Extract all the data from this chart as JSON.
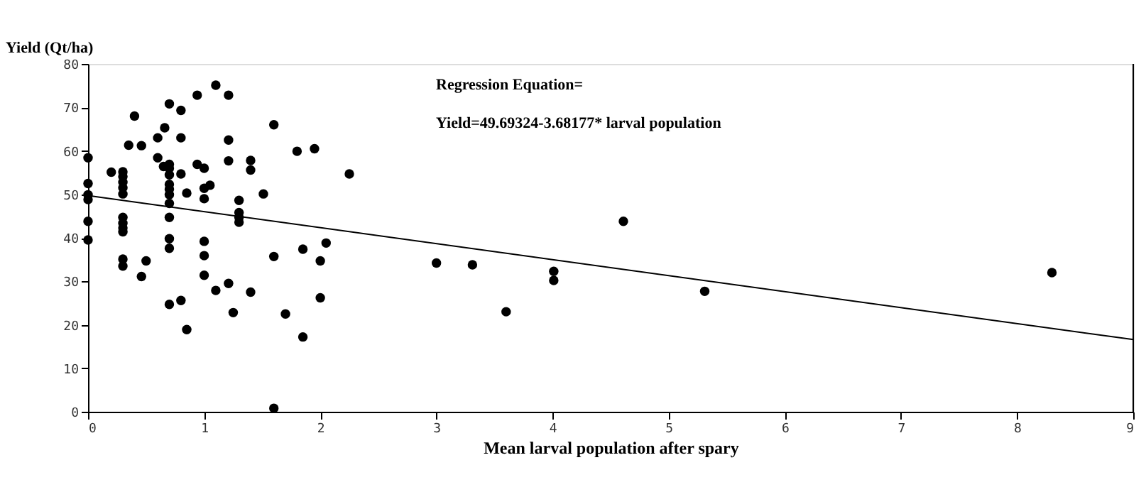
{
  "chart_data": {
    "type": "scatter",
    "xlabel": "Mean larval population after spary",
    "ylabel": "Yield (Qt/ha)",
    "annotations": [
      "Regression Equation=",
      "Yield=49.69324-3.68177* larval population"
    ],
    "xlim": [
      0,
      9
    ],
    "xticks": [
      0,
      1,
      2,
      3,
      4,
      5,
      6,
      7,
      8,
      9
    ],
    "ylim": [
      0,
      80
    ],
    "yticks": [
      0,
      10,
      20,
      30,
      40,
      50,
      60,
      70,
      80
    ],
    "grid": false,
    "marker": "circle",
    "series": [
      {
        "type": "scatter",
        "color": "#000000",
        "x": [
          0,
          0,
          0,
          0,
          0,
          0,
          0.2,
          0.3,
          0.3,
          0.3,
          0.3,
          0.3,
          0.3,
          0.3,
          0.3,
          0.3,
          0.3,
          0.3,
          0.4,
          0.35,
          0.46,
          0.5,
          0.46,
          0.6,
          0.66,
          0.6,
          0.7,
          0.8,
          0.8,
          0.7,
          0.7,
          0.7,
          0.7,
          0.7,
          0.7,
          0.7,
          0.7,
          0.7,
          0.7,
          0.7,
          0.65,
          0.8,
          0.85,
          0.8,
          0.85,
          0.94,
          0.94,
          1.1,
          1.21,
          1.21,
          1.6,
          1.0,
          1.21,
          1.4,
          1.4,
          1.8,
          1.95,
          2.25,
          1.0,
          1.05,
          1.0,
          1.3,
          1.3,
          1.3,
          1.3,
          1.51,
          1.0,
          1.0,
          1.0,
          1.1,
          1.21,
          1.4,
          1.25,
          1.6,
          1.7,
          1.85,
          2.05,
          2.0,
          2.0,
          1.85,
          1.6,
          3.0,
          3.31,
          3.6,
          4.01,
          4.01,
          4.61,
          5.31,
          8.3
        ],
        "values": [
          58.4,
          52.5,
          49.9,
          48.8,
          43.8,
          39.5,
          55.1,
          55.2,
          54.1,
          52.8,
          51.5,
          50.1,
          44.7,
          43.4,
          42.3,
          41.4,
          35.1,
          33.5,
          68.0,
          61.3,
          61.2,
          34.7,
          31.1,
          63.0,
          65.3,
          58.4,
          70.8,
          69.3,
          63.0,
          56.9,
          56.0,
          54.5,
          52.3,
          51.2,
          49.9,
          47.9,
          44.7,
          39.8,
          37.6,
          24.7,
          56.4,
          54.7,
          50.3,
          25.6,
          18.9,
          72.8,
          56.9,
          75.1,
          72.8,
          62.5,
          66.0,
          56.0,
          57.7,
          57.8,
          55.6,
          59.9,
          60.5,
          54.7,
          51.4,
          52.1,
          49.0,
          48.6,
          45.8,
          44.7,
          43.6,
          50.1,
          39.2,
          35.9,
          31.4,
          27.9,
          29.5,
          27.5,
          22.8,
          35.7,
          22.5,
          37.4,
          38.8,
          34.7,
          26.2,
          17.2,
          0.8,
          34.2,
          33.8,
          23.0,
          32.3,
          30.2,
          43.8,
          27.7,
          32.0
        ]
      },
      {
        "type": "line",
        "color": "#000000",
        "line_style": "solid",
        "marker": "none",
        "x": [
          0,
          9
        ],
        "values": [
          49.7,
          16.6
        ]
      }
    ]
  }
}
